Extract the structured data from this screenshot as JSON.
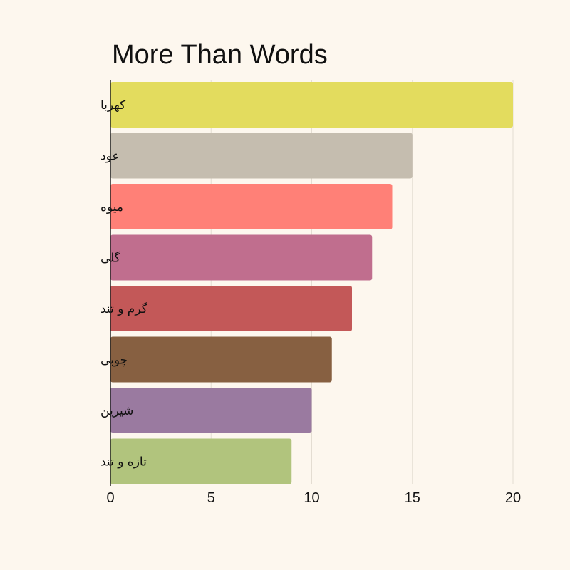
{
  "chart_data": {
    "type": "bar",
    "orientation": "horizontal",
    "title": "More Than Words",
    "xlabel": "",
    "ylabel": "",
    "xlim": [
      0,
      20
    ],
    "xticks": [
      0,
      5,
      10,
      15,
      20
    ],
    "grid": true,
    "legend": "none",
    "categories": [
      "کهربا",
      "عود",
      "میوه",
      "گلی",
      "گرم و تند",
      "چوبی",
      "شیرین",
      "تازه و تند"
    ],
    "values": [
      20,
      15,
      14,
      13,
      12,
      11,
      10,
      9
    ],
    "colors": [
      "#e3dc5e",
      "#c5bdaf",
      "#ff8077",
      "#c06e8e",
      "#c35858",
      "#876041",
      "#9a7aa0",
      "#b1c47d"
    ]
  }
}
